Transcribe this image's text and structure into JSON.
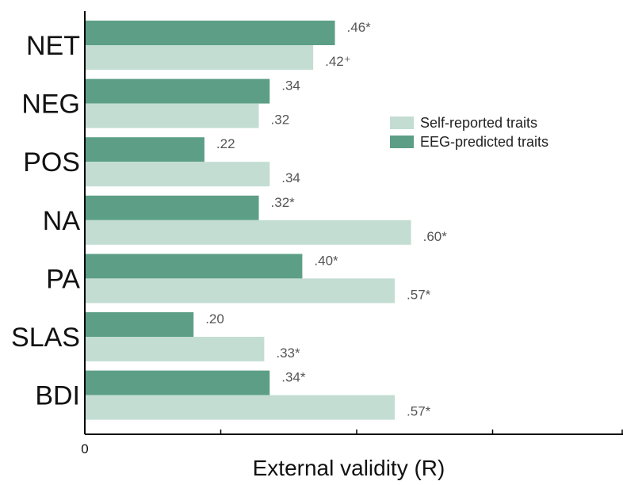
{
  "chart_data": {
    "type": "bar",
    "orientation": "horizontal",
    "categories": [
      "NET",
      "NEG",
      "POS",
      "NA",
      "PA",
      "SLAS",
      "BDI"
    ],
    "series": [
      {
        "name": "EEG-predicted traits",
        "color": "#5c9f86",
        "values": [
          0.46,
          0.34,
          0.22,
          0.32,
          0.4,
          0.2,
          0.34
        ],
        "labels": [
          ".46*",
          ".34",
          ".22",
          ".32*",
          ".40*",
          ".20",
          ".34*"
        ]
      },
      {
        "name": "Self-reported traits",
        "color": "#c3ddd3",
        "values": [
          0.42,
          0.32,
          0.34,
          0.6,
          0.57,
          0.33,
          0.57
        ],
        "labels": [
          ".42⁺",
          ".32",
          ".34",
          ".60*",
          ".57*",
          ".33*",
          ".57*"
        ]
      }
    ],
    "xlabel": "External validity (R)",
    "xlim": [
      0,
      1
    ],
    "xticks": [
      0,
      0.25,
      0.5,
      0.75,
      1
    ],
    "xtick_labels": [
      "0"
    ],
    "legend": {
      "position": "right",
      "items": [
        {
          "label": "Self-reported traits",
          "color": "#c3ddd3"
        },
        {
          "label": "EEG-predicted traits",
          "color": "#5c9f86"
        }
      ]
    },
    "grid": false
  }
}
